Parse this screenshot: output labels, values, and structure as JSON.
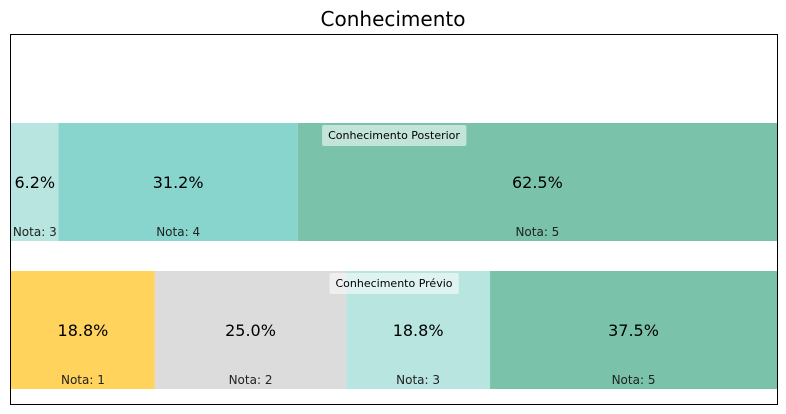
{
  "chart_data": {
    "type": "bar",
    "orientation": "horizontal-stacked-100",
    "title": "Conhecimento",
    "xlim": [
      0,
      100
    ],
    "rows": [
      {
        "label": "Conhecimento Prévio",
        "segments": [
          {
            "value": 18.8,
            "label": "18.8%",
            "nota": "Nota: 1",
            "color": "#ffd35c"
          },
          {
            "value": 25.0,
            "label": "25.0%",
            "nota": "Nota: 2",
            "color": "#dcdcdc"
          },
          {
            "value": 18.8,
            "label": "18.8%",
            "nota": "Nota: 3",
            "color": "#b8e5e0"
          },
          {
            "value": 37.5,
            "label": "37.5%",
            "nota": "Nota: 5",
            "color": "#7ac3aa"
          }
        ]
      },
      {
        "label": "Conhecimento Posterior",
        "segments": [
          {
            "value": 6.2,
            "label": "6.2%",
            "nota": "Nota: 3",
            "color": "#b8e5e0"
          },
          {
            "value": 31.2,
            "label": "31.2%",
            "nota": "Nota: 4",
            "color": "#88d5ce"
          },
          {
            "value": 62.5,
            "label": "62.5%",
            "nota": "Nota: 5",
            "color": "#7ac3aa"
          }
        ]
      }
    ]
  }
}
